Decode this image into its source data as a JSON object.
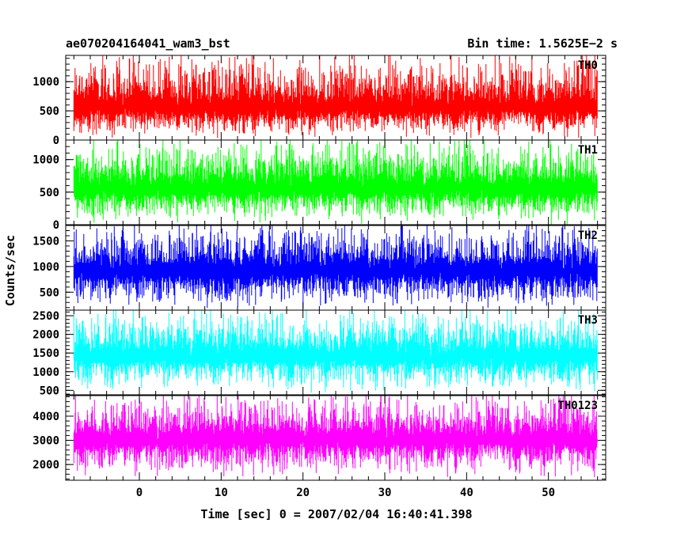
{
  "header": {
    "title": "ae070204164041_wam3_bst",
    "bin_time": "Bin time: 1.5625E−2 s"
  },
  "chart_data": {
    "type": "line",
    "title": "ae070204164041_wam3_bst",
    "xlabel": "Time [sec] 0 = 2007/02/04 16:40:41.398",
    "ylabel": "Counts/sec",
    "xlim": [
      -9,
      57
    ],
    "x_ticks": [
      0,
      10,
      20,
      30,
      40,
      50
    ],
    "x_range_data": [
      -8,
      56
    ],
    "bin_time_s": 0.015625,
    "panels": [
      {
        "name": "TH0",
        "color": "#ff0000",
        "ylim": [
          0,
          1450
        ],
        "y_ticks": [
          0,
          500,
          1000
        ],
        "baseline": 550,
        "low_envelope": 100,
        "high_envelope": 1450
      },
      {
        "name": "TH1",
        "color": "#00ff00",
        "ylim": [
          0,
          1300
        ],
        "y_ticks": [
          0,
          500,
          1000
        ],
        "baseline": 550,
        "low_envelope": 80,
        "high_envelope": 1300
      },
      {
        "name": "TH2",
        "color": "#0000ff",
        "ylim": [
          150,
          1800
        ],
        "y_ticks": [
          500,
          1000,
          1500
        ],
        "baseline": 900,
        "low_envelope": 250,
        "high_envelope": 1800
      },
      {
        "name": "TH3",
        "color": "#00ffff",
        "ylim": [
          380,
          2650
        ],
        "y_ticks": [
          500,
          1000,
          1500,
          2000,
          2500
        ],
        "baseline": 1400,
        "low_envelope": 550,
        "high_envelope": 2650
      },
      {
        "name": "TH0123",
        "color": "#ff00ff",
        "ylim": [
          1350,
          4850
        ],
        "y_ticks": [
          2000,
          3000,
          4000
        ],
        "baseline": 3000,
        "low_envelope": 1600,
        "high_envelope": 4850
      }
    ]
  }
}
